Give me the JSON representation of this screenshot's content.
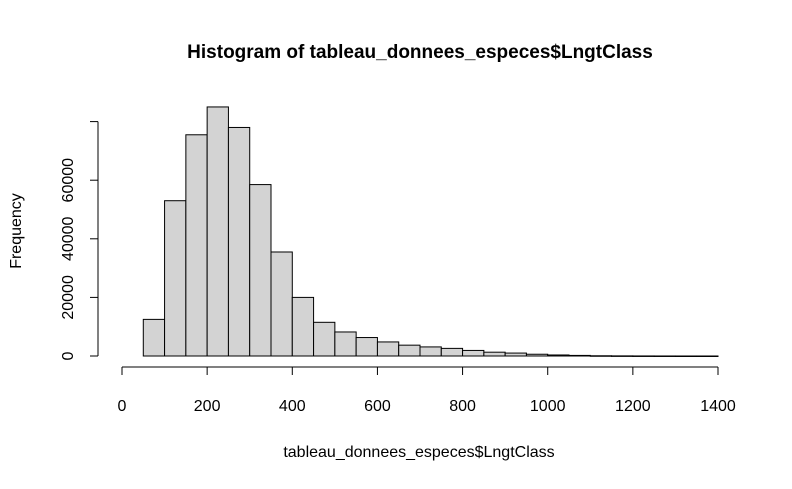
{
  "chart_data": {
    "type": "bar",
    "title": "Histogram of tableau_donnees_especes$LngtClass",
    "xlabel": "tableau_donnees_especes$LngtClass",
    "ylabel": "Frequency",
    "bin_width": 50,
    "xlim": [
      0,
      1400
    ],
    "ylim": [
      0,
      80000
    ],
    "x_ticks": [
      0,
      200,
      400,
      600,
      800,
      1000,
      1200,
      1400
    ],
    "y_ticks": [
      0,
      20000,
      40000,
      60000
    ],
    "x_tick_labels": [
      "0",
      "200",
      "400",
      "600",
      "800",
      "1000",
      "1200",
      "1400"
    ],
    "y_tick_labels": [
      "0",
      "20000",
      "40000",
      "60000"
    ],
    "bins": [
      {
        "start": 50,
        "end": 100,
        "count": 12500
      },
      {
        "start": 100,
        "end": 150,
        "count": 53000
      },
      {
        "start": 150,
        "end": 200,
        "count": 75500
      },
      {
        "start": 200,
        "end": 250,
        "count": 85000
      },
      {
        "start": 250,
        "end": 300,
        "count": 78000
      },
      {
        "start": 300,
        "end": 350,
        "count": 58500
      },
      {
        "start": 350,
        "end": 400,
        "count": 35500
      },
      {
        "start": 400,
        "end": 450,
        "count": 20000
      },
      {
        "start": 450,
        "end": 500,
        "count": 11500
      },
      {
        "start": 500,
        "end": 550,
        "count": 8200
      },
      {
        "start": 550,
        "end": 600,
        "count": 6300
      },
      {
        "start": 600,
        "end": 650,
        "count": 4800
      },
      {
        "start": 650,
        "end": 700,
        "count": 3700
      },
      {
        "start": 700,
        "end": 750,
        "count": 3100
      },
      {
        "start": 750,
        "end": 800,
        "count": 2600
      },
      {
        "start": 800,
        "end": 850,
        "count": 1900
      },
      {
        "start": 850,
        "end": 900,
        "count": 1300
      },
      {
        "start": 900,
        "end": 950,
        "count": 1000
      },
      {
        "start": 950,
        "end": 1000,
        "count": 600
      },
      {
        "start": 1000,
        "end": 1050,
        "count": 350
      },
      {
        "start": 1050,
        "end": 1100,
        "count": 200
      },
      {
        "start": 1100,
        "end": 1150,
        "count": 80
      },
      {
        "start": 1150,
        "end": 1200,
        "count": 40
      },
      {
        "start": 1200,
        "end": 1250,
        "count": 20
      },
      {
        "start": 1250,
        "end": 1300,
        "count": 10
      },
      {
        "start": 1300,
        "end": 1350,
        "count": 5
      },
      {
        "start": 1350,
        "end": 1400,
        "count": 2
      }
    ],
    "bar_fill": "#d3d3d3",
    "bar_stroke": "#000000",
    "grid": false,
    "legend": "none"
  }
}
